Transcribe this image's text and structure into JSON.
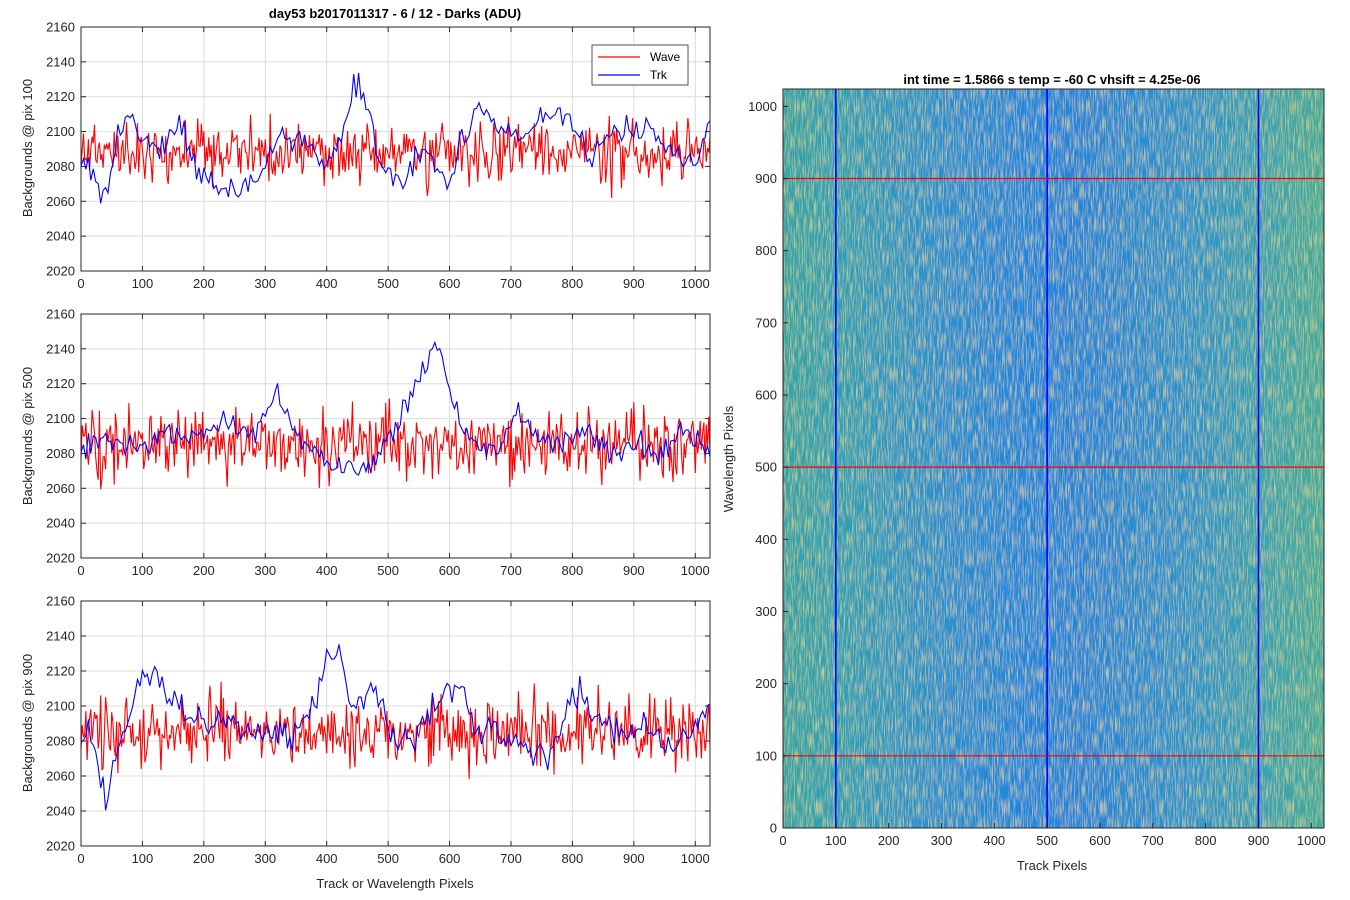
{
  "figure": {
    "left_title": "day53 b2017011317 - 6 / 12 - Darks (ADU)",
    "right_title": "int time = 1.5866 s    temp = -60 C    vhsift = 4.25e-06",
    "colors": {
      "wave": "#ff0000",
      "trk": "#0000ff",
      "axis": "#262626",
      "grid": "#dcdcdc"
    }
  },
  "chart_data": [
    {
      "type": "line",
      "title": "day53 b2017011317 - 6 / 12 - Darks (ADU)",
      "xlabel": "",
      "ylabel": "Backgrounds @ pix 100",
      "xlim": [
        0,
        1024
      ],
      "ylim": [
        2020,
        2160
      ],
      "xticks": [
        "0",
        "100",
        "200",
        "300",
        "400",
        "500",
        "600",
        "700",
        "800",
        "900",
        "1000"
      ],
      "yticks": [
        "2020",
        "2040",
        "2060",
        "2080",
        "2100",
        "2120",
        "2140",
        "2160"
      ],
      "grid": true,
      "legend": {
        "position": "top-right",
        "entries": [
          "Wave",
          "Trk"
        ]
      },
      "series": [
        {
          "name": "Wave",
          "color": "#ff0000",
          "mean": 2088,
          "noise": 12,
          "seed": 11,
          "x_step": 2,
          "bumps": []
        },
        {
          "name": "Trk",
          "color": "#0000ff",
          "mean": 2085,
          "noise": 6,
          "seed": 12,
          "x_step": 4,
          "points": [
            [
              0,
              2085
            ],
            [
              20,
              2070
            ],
            [
              40,
              2062
            ],
            [
              60,
              2100
            ],
            [
              80,
              2112
            ],
            [
              100,
              2095
            ],
            [
              130,
              2090
            ],
            [
              160,
              2105
            ],
            [
              190,
              2080
            ],
            [
              220,
              2068
            ],
            [
              260,
              2065
            ],
            [
              300,
              2080
            ],
            [
              320,
              2100
            ],
            [
              360,
              2092
            ],
            [
              400,
              2080
            ],
            [
              430,
              2105
            ],
            [
              450,
              2128
            ],
            [
              470,
              2110
            ],
            [
              490,
              2075
            ],
            [
              520,
              2070
            ],
            [
              560,
              2090
            ],
            [
              600,
              2070
            ],
            [
              620,
              2095
            ],
            [
              650,
              2115
            ],
            [
              680,
              2100
            ],
            [
              720,
              2095
            ],
            [
              760,
              2108
            ],
            [
              800,
              2105
            ],
            [
              830,
              2080
            ],
            [
              860,
              2100
            ],
            [
              900,
              2098
            ],
            [
              930,
              2100
            ],
            [
              970,
              2085
            ],
            [
              1000,
              2080
            ],
            [
              1024,
              2105
            ]
          ]
        }
      ]
    },
    {
      "type": "line",
      "title": "",
      "xlabel": "",
      "ylabel": "Backgrounds @ pix 500",
      "xlim": [
        0,
        1024
      ],
      "ylim": [
        2020,
        2160
      ],
      "xticks": [
        "0",
        "100",
        "200",
        "300",
        "400",
        "500",
        "600",
        "700",
        "800",
        "900",
        "1000"
      ],
      "yticks": [
        "2020",
        "2040",
        "2060",
        "2080",
        "2100",
        "2120",
        "2140",
        "2160"
      ],
      "grid": true,
      "series": [
        {
          "name": "Wave",
          "color": "#ff0000",
          "mean": 2085,
          "noise": 14,
          "seed": 21,
          "x_step": 2
        },
        {
          "name": "Trk",
          "color": "#0000ff",
          "mean": 2085,
          "noise": 5,
          "seed": 22,
          "x_step": 4,
          "points": [
            [
              0,
              2085
            ],
            [
              40,
              2090
            ],
            [
              80,
              2082
            ],
            [
              120,
              2088
            ],
            [
              160,
              2092
            ],
            [
              200,
              2090
            ],
            [
              240,
              2100
            ],
            [
              280,
              2090
            ],
            [
              320,
              2115
            ],
            [
              340,
              2095
            ],
            [
              380,
              2080
            ],
            [
              420,
              2070
            ],
            [
              480,
              2075
            ],
            [
              520,
              2100
            ],
            [
              560,
              2130
            ],
            [
              580,
              2145
            ],
            [
              600,
              2115
            ],
            [
              640,
              2085
            ],
            [
              680,
              2080
            ],
            [
              710,
              2105
            ],
            [
              740,
              2090
            ],
            [
              780,
              2085
            ],
            [
              820,
              2095
            ],
            [
              860,
              2080
            ],
            [
              900,
              2085
            ],
            [
              940,
              2080
            ],
            [
              980,
              2090
            ],
            [
              1000,
              2092
            ],
            [
              1024,
              2080
            ]
          ]
        }
      ]
    },
    {
      "type": "line",
      "title": "",
      "xlabel": "Track or Wavelength Pixels",
      "ylabel": "Backgrounds @ pix 900",
      "xlim": [
        0,
        1024
      ],
      "ylim": [
        2020,
        2160
      ],
      "xticks": [
        "0",
        "100",
        "200",
        "300",
        "400",
        "500",
        "600",
        "700",
        "800",
        "900",
        "1000"
      ],
      "yticks": [
        "2020",
        "2040",
        "2060",
        "2080",
        "2100",
        "2120",
        "2140",
        "2160"
      ],
      "grid": true,
      "series": [
        {
          "name": "Wave",
          "color": "#ff0000",
          "mean": 2085,
          "noise": 14,
          "seed": 31,
          "x_step": 2
        },
        {
          "name": "Trk",
          "color": "#0000ff",
          "mean": 2085,
          "noise": 6,
          "seed": 32,
          "x_step": 4,
          "points": [
            [
              0,
              2085
            ],
            [
              20,
              2080
            ],
            [
              40,
              2050
            ],
            [
              60,
              2075
            ],
            [
              90,
              2110
            ],
            [
              120,
              2122
            ],
            [
              140,
              2110
            ],
            [
              180,
              2090
            ],
            [
              220,
              2095
            ],
            [
              260,
              2085
            ],
            [
              300,
              2088
            ],
            [
              340,
              2080
            ],
            [
              380,
              2100
            ],
            [
              400,
              2132
            ],
            [
              420,
              2130
            ],
            [
              440,
              2100
            ],
            [
              480,
              2110
            ],
            [
              500,
              2085
            ],
            [
              540,
              2078
            ],
            [
              580,
              2105
            ],
            [
              620,
              2110
            ],
            [
              640,
              2090
            ],
            [
              680,
              2085
            ],
            [
              720,
              2075
            ],
            [
              760,
              2070
            ],
            [
              800,
              2110
            ],
            [
              840,
              2095
            ],
            [
              880,
              2085
            ],
            [
              920,
              2090
            ],
            [
              960,
              2075
            ],
            [
              1000,
              2090
            ],
            [
              1024,
              2100
            ]
          ]
        }
      ]
    },
    {
      "type": "heatmap",
      "title": "int time = 1.5866 s    temp = -60 C    vhsift = 4.25e-06",
      "xlabel": "Track Pixels",
      "ylabel": "Wavelength Pixels",
      "xlim": [
        0,
        1024
      ],
      "ylim": [
        0,
        1024
      ],
      "xticks": [
        "0",
        "100",
        "200",
        "300",
        "400",
        "500",
        "600",
        "700",
        "800",
        "900",
        "1000"
      ],
      "yticks": [
        "0",
        "100",
        "200",
        "300",
        "400",
        "500",
        "600",
        "700",
        "800",
        "900",
        "1000"
      ],
      "colormap": "parula",
      "vertical_markers": [
        100,
        500,
        900
      ],
      "vertical_marker_color": "#0000ff",
      "horizontal_markers": [
        100,
        500,
        900
      ],
      "horizontal_marker_color": "#ff0000"
    }
  ]
}
